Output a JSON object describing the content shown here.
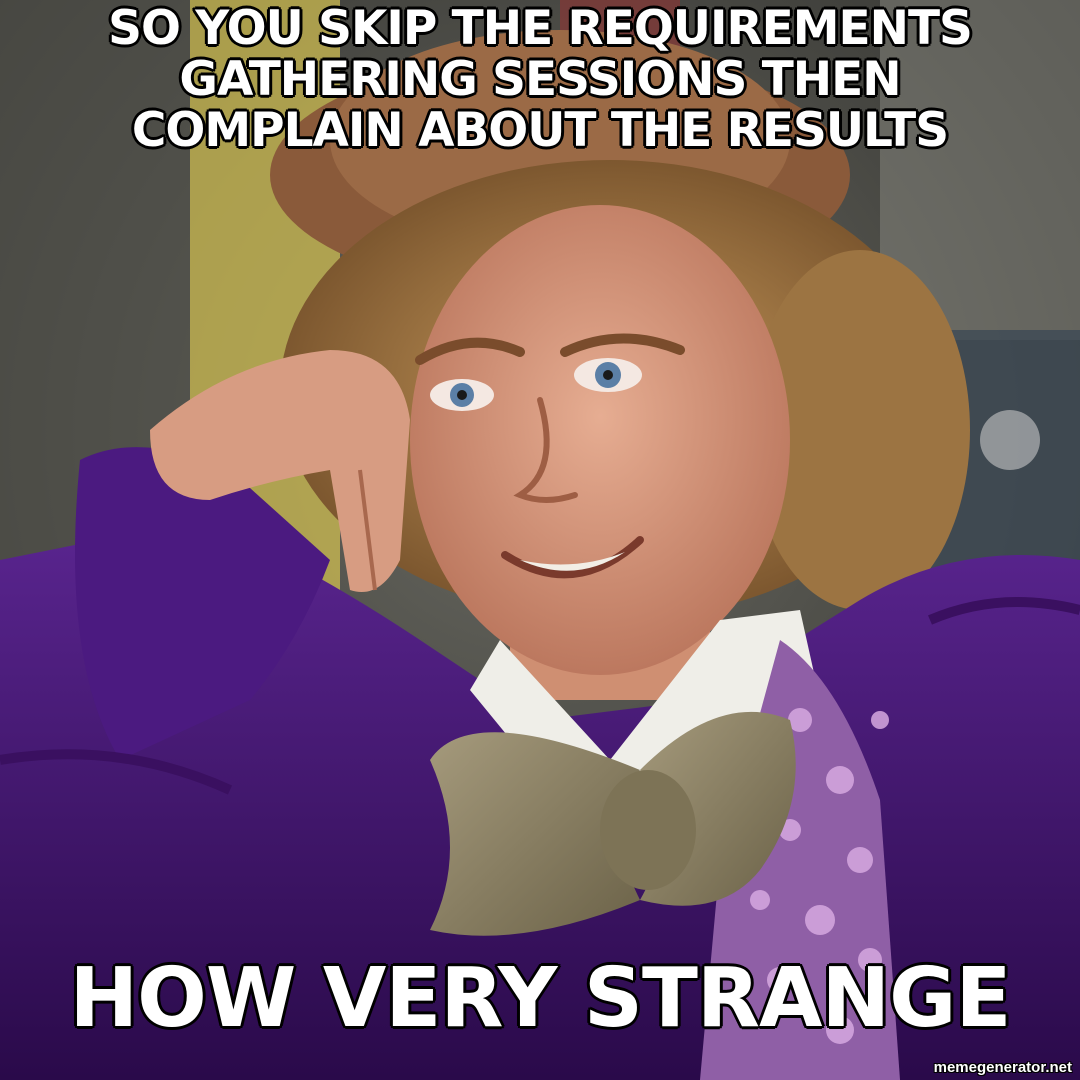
{
  "meme": {
    "top_text": "SO YOU SKIP THE REQUIREMENTS GATHERING SESSIONS THEN COMPLAIN ABOUT THE RESULTS",
    "bottom_text": "HOW VERY STRANGE",
    "watermark": "memegenerator.net"
  },
  "colors": {
    "caption_fill": "#ffffff",
    "caption_stroke": "#000000",
    "jacket_purple": "#4a1a7a",
    "bowtie": "#8c8268",
    "hat": "#8a5a3a",
    "hair": "#b0884e",
    "skin": "#d99a80",
    "background_yellow": "#d8c85a"
  }
}
